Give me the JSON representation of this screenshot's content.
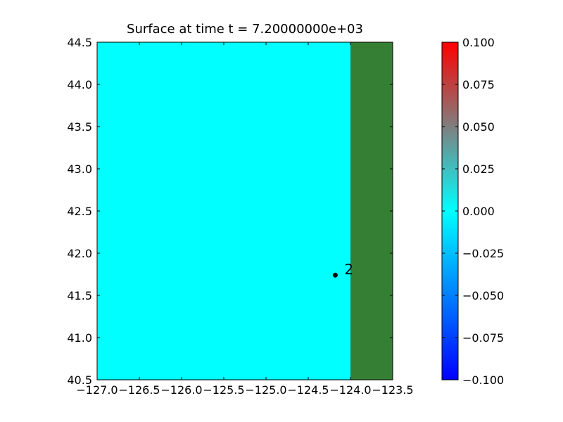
{
  "chart_data": {
    "type": "surface",
    "title": "Surface at time t = 7.20000000e+03",
    "xlim": [
      -127,
      -123.5
    ],
    "ylim": [
      40.5,
      44.5
    ],
    "xticks": [
      {
        "value": -127,
        "label": "−127.0"
      },
      {
        "value": -126.5,
        "label": "−126.5"
      },
      {
        "value": -126,
        "label": "−126.0"
      },
      {
        "value": -125.5,
        "label": "−125.5"
      },
      {
        "value": -125,
        "label": "−125.0"
      },
      {
        "value": -124.5,
        "label": "−124.5"
      },
      {
        "value": -124,
        "label": "−124.0"
      },
      {
        "value": -123.5,
        "label": "−123.5"
      }
    ],
    "yticks": [
      40.5,
      {
        "value": 41,
        "label": "41.0"
      },
      41.5,
      {
        "value": 42,
        "label": "42.0"
      },
      42.5,
      {
        "value": 43,
        "label": "43.0"
      },
      43.5,
      {
        "value": 44,
        "label": "44.0"
      },
      44.5
    ],
    "regions": [
      {
        "x": [
          -127,
          -124
        ],
        "value": 0
      },
      {
        "x": [
          -124,
          -123.5
        ],
        "color": "#347f33"
      }
    ],
    "gauges": [
      {
        "label": "2",
        "x": -124.18,
        "y": 41.74,
        "color": "#000000"
      }
    ],
    "colorbar": {
      "clim": [
        -0.1,
        0.1
      ],
      "ticks": [
        {
          "value": 0.1,
          "label": "0.100"
        },
        {
          "value": 0.075,
          "label": "0.075"
        },
        {
          "value": 0.05,
          "label": "0.050"
        },
        {
          "value": 0.025,
          "label": "0.025"
        },
        {
          "value": 0,
          "label": "0.000"
        },
        {
          "value": -0.025,
          "label": "−0.025"
        },
        {
          "value": -0.05,
          "label": "−0.050"
        },
        {
          "value": -0.075,
          "label": "−0.075"
        },
        {
          "value": -0.1,
          "label": "−0.100"
        }
      ],
      "colormap": [
        {
          "value": -0.1,
          "color": "#0000ff"
        },
        {
          "value": 0,
          "color": "#00ffff"
        },
        {
          "value": 0.05,
          "color": "#7f7f7f"
        },
        {
          "value": 0.1,
          "color": "#ff0000"
        }
      ]
    }
  }
}
